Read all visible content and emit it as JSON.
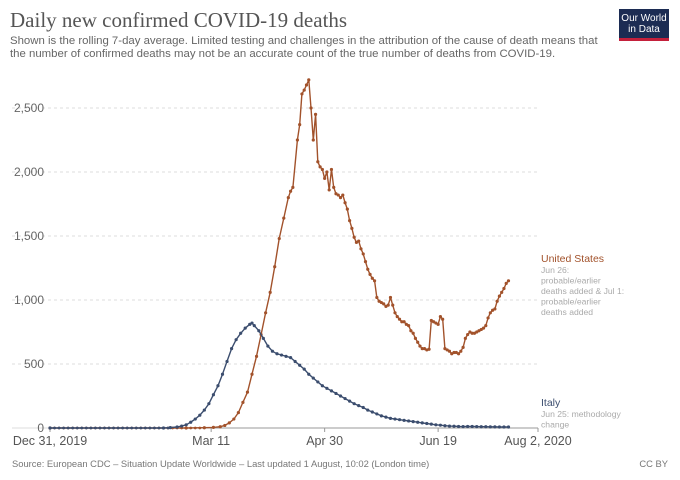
{
  "title": "Daily new confirmed COVID-19 deaths",
  "subtitle": "Shown is the rolling 7-day average. Limited testing and challenges in the attribution of the cause of death means that the number of confirmed deaths may not be an accurate count of the true number of deaths from COVID-19.",
  "logo": {
    "line1": "Our World",
    "line2": "in Data"
  },
  "footer": {
    "source": "Source: European CDC – Situation Update Worldwide – Last updated 1 August, 10:02 (London time)",
    "license": "CC BY"
  },
  "colors": {
    "united_states": "#a2522b",
    "italy": "#3b4d6e",
    "grid": "#dddddd"
  },
  "chart_data": {
    "type": "line",
    "title": "Daily new confirmed COVID-19 deaths",
    "x_unit": "date",
    "x_range": [
      "2019-12-31",
      "2020-08-02"
    ],
    "ylim": [
      0,
      2750
    ],
    "grid": true,
    "legend": "inline labels at right end of lines",
    "x_ticks": [
      "Dec 31, 2019",
      "Mar 11",
      "Apr 30",
      "Jun 19",
      "Aug 2, 2020"
    ],
    "x_tick_values": [
      0,
      71,
      121,
      171,
      215
    ],
    "y_ticks": [
      0,
      500,
      1000,
      1500,
      2000,
      2500
    ],
    "y_tick_labels": [
      "0",
      "500",
      "1,000",
      "1,500",
      "2,000",
      "2,500"
    ],
    "series": [
      {
        "name": "United States",
        "key": "us",
        "annotation": "Jun 26: probable/earlier deaths added & Jul 1: probable/earlier deaths added",
        "points": [
          [
            0,
            0
          ],
          [
            60,
            0
          ],
          [
            68,
            2
          ],
          [
            72,
            5
          ],
          [
            75,
            10
          ],
          [
            77,
            20
          ],
          [
            79,
            40
          ],
          [
            81,
            70
          ],
          [
            83,
            120
          ],
          [
            85,
            200
          ],
          [
            87,
            280
          ],
          [
            89,
            420
          ],
          [
            91,
            560
          ],
          [
            93,
            730
          ],
          [
            95,
            900
          ],
          [
            97,
            1060
          ],
          [
            99,
            1260
          ],
          [
            101,
            1480
          ],
          [
            103,
            1640
          ],
          [
            105,
            1800
          ],
          [
            106,
            1850
          ],
          [
            107,
            1880
          ],
          [
            109,
            2250
          ],
          [
            110,
            2370
          ],
          [
            111,
            2610
          ],
          [
            112,
            2640
          ],
          [
            113,
            2680
          ],
          [
            114,
            2720
          ],
          [
            115,
            2500
          ],
          [
            116,
            2250
          ],
          [
            117,
            2450
          ],
          [
            118,
            2080
          ],
          [
            119,
            2040
          ],
          [
            120,
            2020
          ],
          [
            121,
            1950
          ],
          [
            122,
            2000
          ],
          [
            123,
            1860
          ],
          [
            124,
            2020
          ],
          [
            125,
            1880
          ],
          [
            126,
            1830
          ],
          [
            127,
            1820
          ],
          [
            128,
            1800
          ],
          [
            129,
            1820
          ],
          [
            130,
            1760
          ],
          [
            131,
            1710
          ],
          [
            132,
            1620
          ],
          [
            133,
            1560
          ],
          [
            134,
            1490
          ],
          [
            135,
            1450
          ],
          [
            136,
            1460
          ],
          [
            137,
            1400
          ],
          [
            138,
            1360
          ],
          [
            139,
            1300
          ],
          [
            140,
            1240
          ],
          [
            141,
            1200
          ],
          [
            142,
            1170
          ],
          [
            143,
            1150
          ],
          [
            144,
            1020
          ],
          [
            145,
            990
          ],
          [
            146,
            980
          ],
          [
            147,
            970
          ],
          [
            148,
            950
          ],
          [
            149,
            960
          ],
          [
            150,
            1020
          ],
          [
            151,
            960
          ],
          [
            152,
            900
          ],
          [
            153,
            870
          ],
          [
            154,
            850
          ],
          [
            155,
            830
          ],
          [
            156,
            830
          ],
          [
            157,
            810
          ],
          [
            158,
            800
          ],
          [
            159,
            760
          ],
          [
            160,
            740
          ],
          [
            161,
            700
          ],
          [
            162,
            670
          ],
          [
            163,
            640
          ],
          [
            164,
            620
          ],
          [
            165,
            620
          ],
          [
            166,
            610
          ],
          [
            167,
            615
          ],
          [
            168,
            840
          ],
          [
            169,
            830
          ],
          [
            170,
            820
          ],
          [
            171,
            810
          ],
          [
            172,
            870
          ],
          [
            173,
            850
          ],
          [
            174,
            620
          ],
          [
            175,
            610
          ],
          [
            176,
            600
          ],
          [
            177,
            580
          ],
          [
            178,
            590
          ],
          [
            179,
            590
          ],
          [
            180,
            580
          ],
          [
            181,
            600
          ],
          [
            182,
            630
          ],
          [
            183,
            700
          ],
          [
            184,
            730
          ],
          [
            185,
            750
          ],
          [
            186,
            740
          ],
          [
            187,
            740
          ],
          [
            188,
            750
          ],
          [
            189,
            760
          ],
          [
            190,
            770
          ],
          [
            191,
            780
          ],
          [
            192,
            800
          ],
          [
            193,
            860
          ],
          [
            194,
            900
          ],
          [
            195,
            920
          ],
          [
            196,
            930
          ],
          [
            197,
            990
          ],
          [
            198,
            1030
          ],
          [
            199,
            1060
          ],
          [
            200,
            1090
          ],
          [
            201,
            1130
          ],
          [
            202,
            1150
          ]
        ]
      },
      {
        "name": "Italy",
        "key": "it",
        "annotation": "Jun 25: methodology change",
        "points": [
          [
            0,
            0
          ],
          [
            50,
            0
          ],
          [
            53,
            3
          ],
          [
            56,
            8
          ],
          [
            58,
            15
          ],
          [
            60,
            25
          ],
          [
            62,
            45
          ],
          [
            64,
            70
          ],
          [
            66,
            100
          ],
          [
            68,
            140
          ],
          [
            70,
            190
          ],
          [
            72,
            260
          ],
          [
            74,
            330
          ],
          [
            76,
            420
          ],
          [
            78,
            520
          ],
          [
            80,
            620
          ],
          [
            82,
            690
          ],
          [
            84,
            740
          ],
          [
            86,
            780
          ],
          [
            88,
            810
          ],
          [
            89,
            820
          ],
          [
            90,
            800
          ],
          [
            92,
            760
          ],
          [
            94,
            700
          ],
          [
            96,
            640
          ],
          [
            98,
            600
          ],
          [
            100,
            580
          ],
          [
            102,
            570
          ],
          [
            104,
            560
          ],
          [
            106,
            550
          ],
          [
            108,
            520
          ],
          [
            110,
            490
          ],
          [
            112,
            460
          ],
          [
            114,
            420
          ],
          [
            116,
            390
          ],
          [
            118,
            360
          ],
          [
            120,
            330
          ],
          [
            122,
            310
          ],
          [
            124,
            290
          ],
          [
            126,
            270
          ],
          [
            128,
            250
          ],
          [
            130,
            230
          ],
          [
            132,
            210
          ],
          [
            134,
            190
          ],
          [
            136,
            175
          ],
          [
            138,
            160
          ],
          [
            140,
            140
          ],
          [
            142,
            125
          ],
          [
            144,
            110
          ],
          [
            146,
            95
          ],
          [
            148,
            85
          ],
          [
            150,
            75
          ],
          [
            152,
            70
          ],
          [
            154,
            65
          ],
          [
            156,
            60
          ],
          [
            158,
            55
          ],
          [
            160,
            50
          ],
          [
            162,
            45
          ],
          [
            164,
            40
          ],
          [
            166,
            35
          ],
          [
            168,
            30
          ],
          [
            170,
            25
          ],
          [
            172,
            22
          ],
          [
            174,
            18
          ],
          [
            176,
            15
          ],
          [
            178,
            14
          ],
          [
            180,
            12
          ],
          [
            182,
            11
          ],
          [
            184,
            12
          ],
          [
            186,
            12
          ],
          [
            188,
            11
          ],
          [
            190,
            10
          ],
          [
            192,
            10
          ],
          [
            194,
            9
          ],
          [
            196,
            9
          ],
          [
            198,
            8
          ],
          [
            200,
            8
          ],
          [
            202,
            8
          ]
        ]
      }
    ]
  }
}
